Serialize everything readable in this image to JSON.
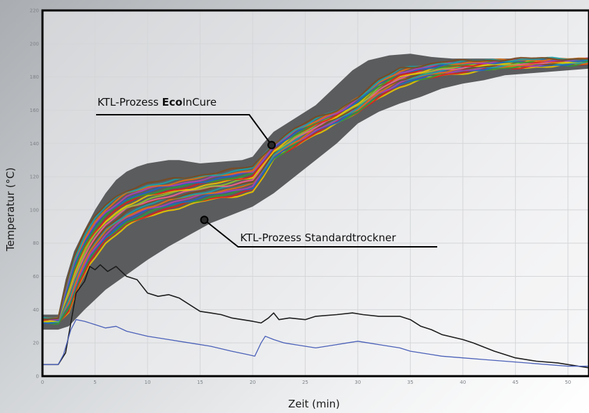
{
  "chart_data": {
    "type": "line",
    "xlabel": "Zeit (min)",
    "ylabel": "Temperatur (°C)",
    "xlim": [
      0,
      52
    ],
    "ylim": [
      0,
      220
    ],
    "xticks": [
      "0",
      "5",
      "10",
      "15",
      "20",
      "25",
      "30",
      "35",
      "40",
      "45",
      "50"
    ],
    "yticks": [
      "0",
      "20",
      "40",
      "60",
      "80",
      "100",
      "120",
      "140",
      "160",
      "180",
      "200",
      "220"
    ],
    "grid": true,
    "annotations": {
      "ecoincure": {
        "prefix": "KTL-Prozess ",
        "bold": "Eco",
        "suffix": "InCure",
        "point": [
          21.8,
          139
        ]
      },
      "standard": {
        "text": "KTL-Prozess Standardtrockner",
        "point": [
          15.4,
          94
        ]
      }
    },
    "colors": {
      "band": "#5b5c5e",
      "black_curve": "#1c1c1c",
      "blue_curve": "#4a60b8",
      "bundle": [
        "#e8c400",
        "#d62020",
        "#2b9c3a",
        "#2060c8",
        "#b040b0",
        "#e07010",
        "#18a0a8",
        "#7a4a20",
        "#f06090",
        "#8fbf30"
      ]
    },
    "band": {
      "upper": [
        [
          0,
          37
        ],
        [
          1.5,
          37
        ],
        [
          2.2,
          58
        ],
        [
          3,
          75
        ],
        [
          4,
          88
        ],
        [
          5,
          100
        ],
        [
          6,
          110
        ],
        [
          7,
          118
        ],
        [
          8,
          123
        ],
        [
          9,
          126
        ],
        [
          10,
          128
        ],
        [
          11,
          129
        ],
        [
          12,
          130
        ],
        [
          13,
          130
        ],
        [
          14,
          129
        ],
        [
          15,
          128
        ],
        [
          17,
          129
        ],
        [
          19,
          130
        ],
        [
          20,
          132
        ],
        [
          21,
          140
        ],
        [
          22,
          147
        ],
        [
          24,
          155
        ],
        [
          26,
          163
        ],
        [
          28,
          175
        ],
        [
          29.5,
          184
        ],
        [
          31,
          190
        ],
        [
          33,
          193
        ],
        [
          35,
          194
        ],
        [
          37,
          192
        ],
        [
          39,
          191
        ],
        [
          41,
          191
        ],
        [
          44,
          191
        ],
        [
          47,
          191
        ],
        [
          50,
          191
        ],
        [
          52,
          191
        ]
      ],
      "lower": [
        [
          0,
          28
        ],
        [
          1.5,
          28
        ],
        [
          2.5,
          30
        ],
        [
          4,
          40
        ],
        [
          6,
          52
        ],
        [
          8,
          61
        ],
        [
          10,
          70
        ],
        [
          12,
          78
        ],
        [
          14,
          85
        ],
        [
          16,
          92
        ],
        [
          18,
          97
        ],
        [
          20,
          102
        ],
        [
          22,
          110
        ],
        [
          24,
          120
        ],
        [
          26,
          130
        ],
        [
          28,
          140
        ],
        [
          30,
          152
        ],
        [
          32,
          159
        ],
        [
          34,
          164
        ],
        [
          36,
          168
        ],
        [
          38,
          173
        ],
        [
          40,
          176
        ],
        [
          42,
          178
        ],
        [
          44,
          181
        ],
        [
          46,
          182
        ],
        [
          48,
          183
        ],
        [
          50,
          184
        ],
        [
          52,
          185
        ]
      ]
    },
    "bundle": {
      "upper": [
        [
          0,
          35
        ],
        [
          1.5,
          35
        ],
        [
          2.2,
          55
        ],
        [
          3,
          72
        ],
        [
          4,
          86
        ],
        [
          5,
          96
        ],
        [
          6,
          103
        ],
        [
          7,
          108
        ],
        [
          8,
          112
        ],
        [
          10,
          116
        ],
        [
          12,
          118
        ],
        [
          14,
          120
        ],
        [
          16,
          122
        ],
        [
          18,
          124
        ],
        [
          20,
          126
        ],
        [
          21,
          133
        ],
        [
          22,
          140
        ],
        [
          24,
          149
        ],
        [
          26,
          155
        ],
        [
          28,
          160
        ],
        [
          30,
          168
        ],
        [
          32,
          178
        ],
        [
          34,
          185
        ],
        [
          36,
          187
        ],
        [
          38,
          189
        ],
        [
          42,
          190
        ],
        [
          46,
          191
        ],
        [
          50,
          191
        ],
        [
          52,
          191
        ]
      ],
      "lower": [
        [
          0,
          32
        ],
        [
          1.5,
          32
        ],
        [
          2.5,
          38
        ],
        [
          3.5,
          55
        ],
        [
          4.5,
          68
        ],
        [
          6,
          80
        ],
        [
          8,
          90
        ],
        [
          10,
          96
        ],
        [
          12,
          100
        ],
        [
          14,
          103
        ],
        [
          16,
          106
        ],
        [
          18,
          108
        ],
        [
          20,
          111
        ],
        [
          21,
          120
        ],
        [
          22,
          130
        ],
        [
          24,
          138
        ],
        [
          26,
          146
        ],
        [
          28,
          152
        ],
        [
          30,
          158
        ],
        [
          32,
          168
        ],
        [
          34,
          174
        ],
        [
          36,
          178
        ],
        [
          38,
          181
        ],
        [
          42,
          184
        ],
        [
          46,
          186
        ],
        [
          50,
          187
        ],
        [
          52,
          188
        ]
      ]
    },
    "series": [
      {
        "data": [
          [
            0,
            7
          ],
          [
            1.5,
            7
          ],
          [
            2.2,
            14
          ],
          [
            3.2,
            50
          ],
          [
            4,
            57
          ],
          [
            4.5,
            66
          ],
          [
            5,
            64
          ],
          [
            5.5,
            67
          ],
          [
            6.2,
            63
          ],
          [
            7,
            66
          ],
          [
            8,
            60
          ],
          [
            9,
            58
          ],
          [
            10,
            50
          ],
          [
            11,
            48
          ],
          [
            12,
            49
          ],
          [
            13,
            47
          ],
          [
            14,
            43
          ],
          [
            15,
            39
          ],
          [
            16,
            38
          ],
          [
            17,
            37
          ],
          [
            18,
            35
          ],
          [
            19,
            34
          ],
          [
            20,
            33
          ],
          [
            20.8,
            32
          ],
          [
            21.5,
            35
          ],
          [
            22,
            38
          ],
          [
            22.5,
            34
          ],
          [
            23.5,
            35
          ],
          [
            25,
            34
          ],
          [
            26,
            36
          ],
          [
            28,
            37
          ],
          [
            29.5,
            38
          ],
          [
            30.5,
            37
          ],
          [
            32,
            36
          ],
          [
            34,
            36
          ],
          [
            35,
            34
          ],
          [
            36,
            30
          ],
          [
            37,
            28
          ],
          [
            38,
            25
          ],
          [
            40,
            22
          ],
          [
            41,
            20
          ],
          [
            43,
            15
          ],
          [
            45,
            11
          ],
          [
            47,
            9
          ],
          [
            49,
            8
          ],
          [
            51,
            6
          ],
          [
            52,
            5
          ]
        ]
      },
      {
        "data": [
          [
            0,
            7
          ],
          [
            1.5,
            7
          ],
          [
            2,
            13
          ],
          [
            2.7,
            28
          ],
          [
            3.2,
            34
          ],
          [
            4,
            33
          ],
          [
            5,
            31
          ],
          [
            6,
            29
          ],
          [
            7,
            30
          ],
          [
            8,
            27
          ],
          [
            10,
            24
          ],
          [
            12,
            22
          ],
          [
            14,
            20
          ],
          [
            16,
            18
          ],
          [
            18,
            15
          ],
          [
            19.5,
            13
          ],
          [
            20.2,
            12
          ],
          [
            20.8,
            20
          ],
          [
            21.2,
            24
          ],
          [
            22,
            22
          ],
          [
            23,
            20
          ],
          [
            24,
            19
          ],
          [
            25,
            18
          ],
          [
            26,
            17
          ],
          [
            27,
            18
          ],
          [
            28,
            19
          ],
          [
            29,
            20
          ],
          [
            30,
            21
          ],
          [
            31,
            20
          ],
          [
            32,
            19
          ],
          [
            33,
            18
          ],
          [
            34,
            17
          ],
          [
            35,
            15
          ],
          [
            36,
            14
          ],
          [
            37,
            13
          ],
          [
            38,
            12
          ],
          [
            40,
            11
          ],
          [
            42,
            10
          ],
          [
            44,
            9
          ],
          [
            46,
            8
          ],
          [
            48,
            7
          ],
          [
            50,
            6
          ],
          [
            52,
            6
          ]
        ]
      }
    ]
  }
}
